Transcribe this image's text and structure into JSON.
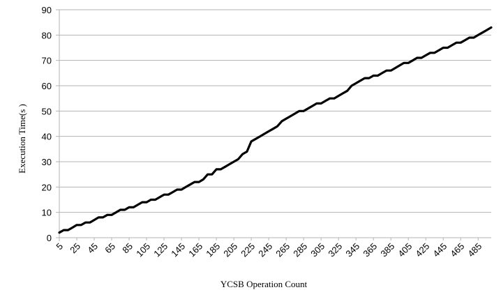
{
  "chart_data": {
    "type": "line",
    "title": "",
    "xlabel": "YCSB Operation Count",
    "ylabel": "Execution Time(s )",
    "ylim": [
      0,
      90
    ],
    "yticks": [
      0,
      10,
      20,
      30,
      40,
      50,
      60,
      70,
      80,
      90
    ],
    "xlim": [
      5,
      500
    ],
    "xtick_labels": [
      5,
      25,
      45,
      65,
      85,
      105,
      125,
      145,
      165,
      185,
      205,
      225,
      245,
      265,
      285,
      305,
      325,
      345,
      365,
      385,
      405,
      425,
      445,
      465,
      485
    ],
    "grid": "horizontal",
    "legend": "none",
    "line_color": "#000000",
    "series": [
      {
        "x": [
          5,
          10,
          15,
          20,
          25,
          30,
          35,
          40,
          45,
          50,
          55,
          60,
          65,
          70,
          75,
          80,
          85,
          90,
          95,
          100,
          105,
          110,
          115,
          120,
          125,
          130,
          135,
          140,
          145,
          150,
          155,
          160,
          165,
          170,
          175,
          180,
          185,
          190,
          195,
          200,
          205,
          210,
          215,
          220,
          225,
          230,
          235,
          240,
          245,
          250,
          255,
          260,
          265,
          270,
          275,
          280,
          285,
          290,
          295,
          300,
          305,
          310,
          315,
          320,
          325,
          330,
          335,
          340,
          345,
          350,
          355,
          360,
          365,
          370,
          375,
          380,
          385,
          390,
          395,
          400,
          405,
          410,
          415,
          420,
          425,
          430,
          435,
          440,
          445,
          450,
          455,
          460,
          465,
          470,
          475,
          480,
          485,
          490,
          495,
          500
        ],
        "values": [
          2,
          3,
          3,
          4,
          5,
          5,
          6,
          6,
          7,
          8,
          8,
          9,
          9,
          10,
          11,
          11,
          12,
          12,
          13,
          14,
          14,
          15,
          15,
          16,
          17,
          17,
          18,
          19,
          19,
          20,
          21,
          22,
          22,
          23,
          25,
          25,
          27,
          27,
          28,
          29,
          30,
          31,
          33,
          34,
          38,
          39,
          40,
          41,
          42,
          43,
          44,
          46,
          47,
          48,
          49,
          50,
          50,
          51,
          52,
          53,
          53,
          54,
          55,
          55,
          56,
          57,
          58,
          60,
          61,
          62,
          63,
          63,
          64,
          64,
          65,
          66,
          66,
          67,
          68,
          69,
          69,
          70,
          71,
          71,
          72,
          73,
          73,
          74,
          75,
          75,
          76,
          77,
          77,
          78,
          79,
          79,
          80,
          81,
          82,
          83
        ]
      }
    ]
  }
}
